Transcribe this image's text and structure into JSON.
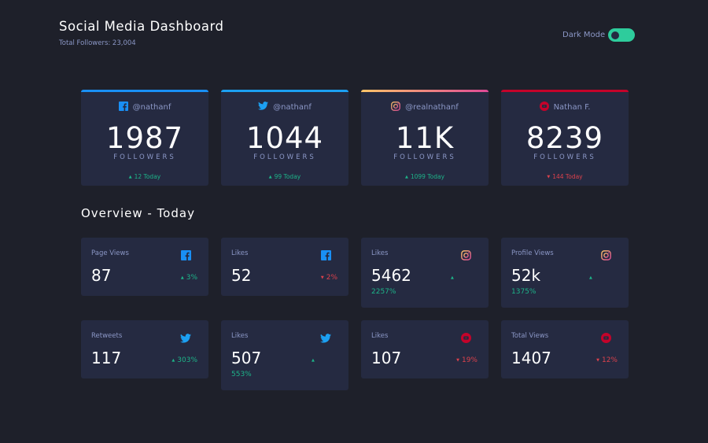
{
  "header": {
    "title": "Social Media Dashboard",
    "subtitle": "Total Followers: 23,004",
    "dark_mode_label": "Dark Mode"
  },
  "colors": {
    "facebook": "#198ff5",
    "twitter": "#1ca0f2",
    "instagram_start": "#fdc468",
    "instagram_end": "#df4996",
    "youtube": "#c4032a",
    "up": "#1db489",
    "down": "#dc414c",
    "toggle": "#2ecc9c"
  },
  "cards": [
    {
      "network": "facebook",
      "icon": "facebook-icon",
      "handle": "@nathanf",
      "count": "1987",
      "unit": "FOLLOWERS",
      "trend": "up",
      "today": "12 Today"
    },
    {
      "network": "twitter",
      "icon": "twitter-icon",
      "handle": "@nathanf",
      "count": "1044",
      "unit": "FOLLOWERS",
      "trend": "up",
      "today": "99 Today"
    },
    {
      "network": "instagram",
      "icon": "instagram-icon",
      "handle": "@realnathanf",
      "count": "11K",
      "unit": "FOLLOWERS",
      "trend": "up",
      "today": "1099 Today"
    },
    {
      "network": "youtube",
      "icon": "youtube-icon",
      "handle": "Nathan F.",
      "count": "8239",
      "unit": "FOLLOWERS",
      "trend": "down",
      "today": "144 Today"
    }
  ],
  "overview": {
    "title": "Overview - Today",
    "tiles": [
      {
        "label": "Page Views",
        "icon": "facebook-icon",
        "value": "87",
        "trend": "up",
        "percent": "3%"
      },
      {
        "label": "Likes",
        "icon": "facebook-icon",
        "value": "52",
        "trend": "down",
        "percent": "2%"
      },
      {
        "label": "Likes",
        "icon": "instagram-icon",
        "value": "5462",
        "trend": "up",
        "percent": "2257%"
      },
      {
        "label": "Profile Views",
        "icon": "instagram-icon",
        "value": "52k",
        "trend": "up",
        "percent": "1375%"
      },
      {
        "label": "Retweets",
        "icon": "twitter-icon",
        "value": "117",
        "trend": "up",
        "percent": "303%"
      },
      {
        "label": "Likes",
        "icon": "twitter-icon",
        "value": "507",
        "trend": "up",
        "percent": "553%"
      },
      {
        "label": "Likes",
        "icon": "youtube-icon",
        "value": "107",
        "trend": "down",
        "percent": "19%"
      },
      {
        "label": "Total Views",
        "icon": "youtube-icon",
        "value": "1407",
        "trend": "down",
        "percent": "12%"
      }
    ]
  }
}
